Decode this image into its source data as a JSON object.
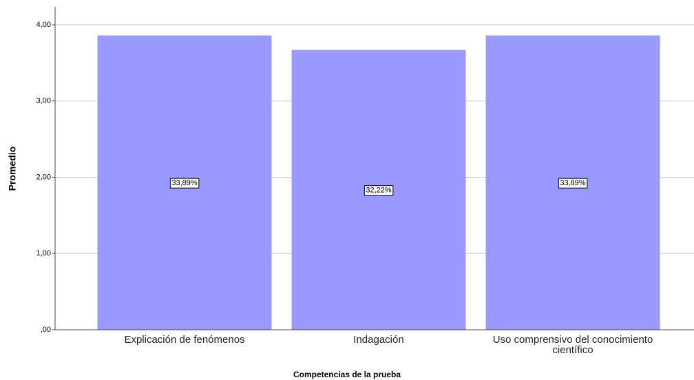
{
  "chart_data": {
    "type": "bar",
    "x_label": "Competencias de la prueba",
    "y_label": "Promedio",
    "categories": [
      "Explicación de fenómenos",
      "Indagación",
      "Uso comprensivo del conocimiento científico"
    ],
    "values": [
      3.86,
      3.67,
      3.86
    ],
    "annotations": [
      "33,89%",
      "32,22%",
      "33,89%"
    ],
    "color": "#9999ff",
    "ylim": [
      0,
      4
    ],
    "yticks": [
      {
        "value": 0,
        "label": ",00"
      },
      {
        "value": 1,
        "label": "1,00"
      },
      {
        "value": 2,
        "label": "2,00"
      },
      {
        "value": 3,
        "label": "3,00"
      },
      {
        "value": 4,
        "label": "4,00"
      }
    ],
    "grid": true
  }
}
